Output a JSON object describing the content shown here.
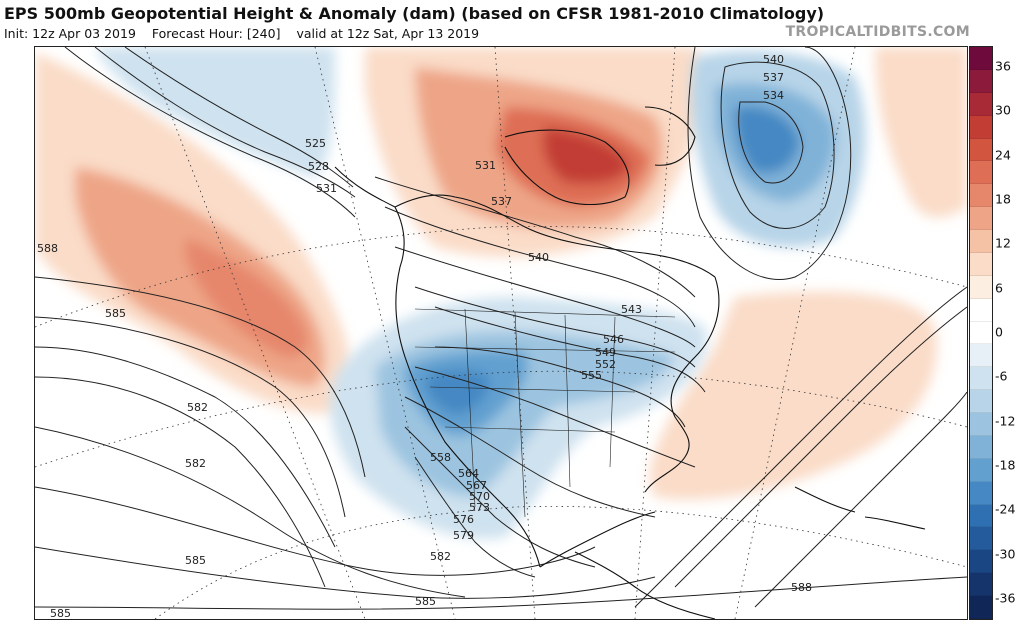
{
  "header": {
    "title": "EPS 500mb Geopotential Height & Anomaly (dam) (based on CFSR 1981-2010 Climatology)",
    "init": "Init: 12z Apr 03 2019",
    "forecast_hour": "Forecast Hour: [240]",
    "valid": "valid at 12z Sat, Apr 13 2019",
    "brand": "TROPICALTIDBITS.COM"
  },
  "colorbar": {
    "labels": [
      "36",
      "30",
      "24",
      "18",
      "12",
      "6",
      "0",
      "-6",
      "-12",
      "-18",
      "-24",
      "-30",
      "-36"
    ],
    "colors": [
      "#6e0a3c",
      "#8c1a3a",
      "#a82a36",
      "#c23e34",
      "#d25540",
      "#de6e55",
      "#e6876c",
      "#eea587",
      "#f5c2a6",
      "#fadcc8",
      "#fdeee2",
      "#ffffff",
      "#ffffff",
      "#e6f0f6",
      "#cfe2ef",
      "#b7d4e8",
      "#9cc4e0",
      "#80b2d8",
      "#62a0d0",
      "#4588c3",
      "#2e70b2",
      "#235b9c",
      "#1b4684",
      "#16346c",
      "#102656"
    ]
  },
  "contours": {
    "labels": [
      "525",
      "528",
      "531",
      "531",
      "537",
      "540",
      "543",
      "546",
      "549",
      "552",
      "555",
      "558",
      "564",
      "567",
      "570",
      "573",
      "576",
      "579",
      "582",
      "582",
      "582",
      "585",
      "585",
      "585",
      "585",
      "588",
      "588",
      "540",
      "537",
      "534"
    ]
  },
  "colors": {
    "positive_anomaly": "#e6876c",
    "negative_anomaly": "#62a0d0",
    "contour": "#222222",
    "coast": "#111111"
  }
}
